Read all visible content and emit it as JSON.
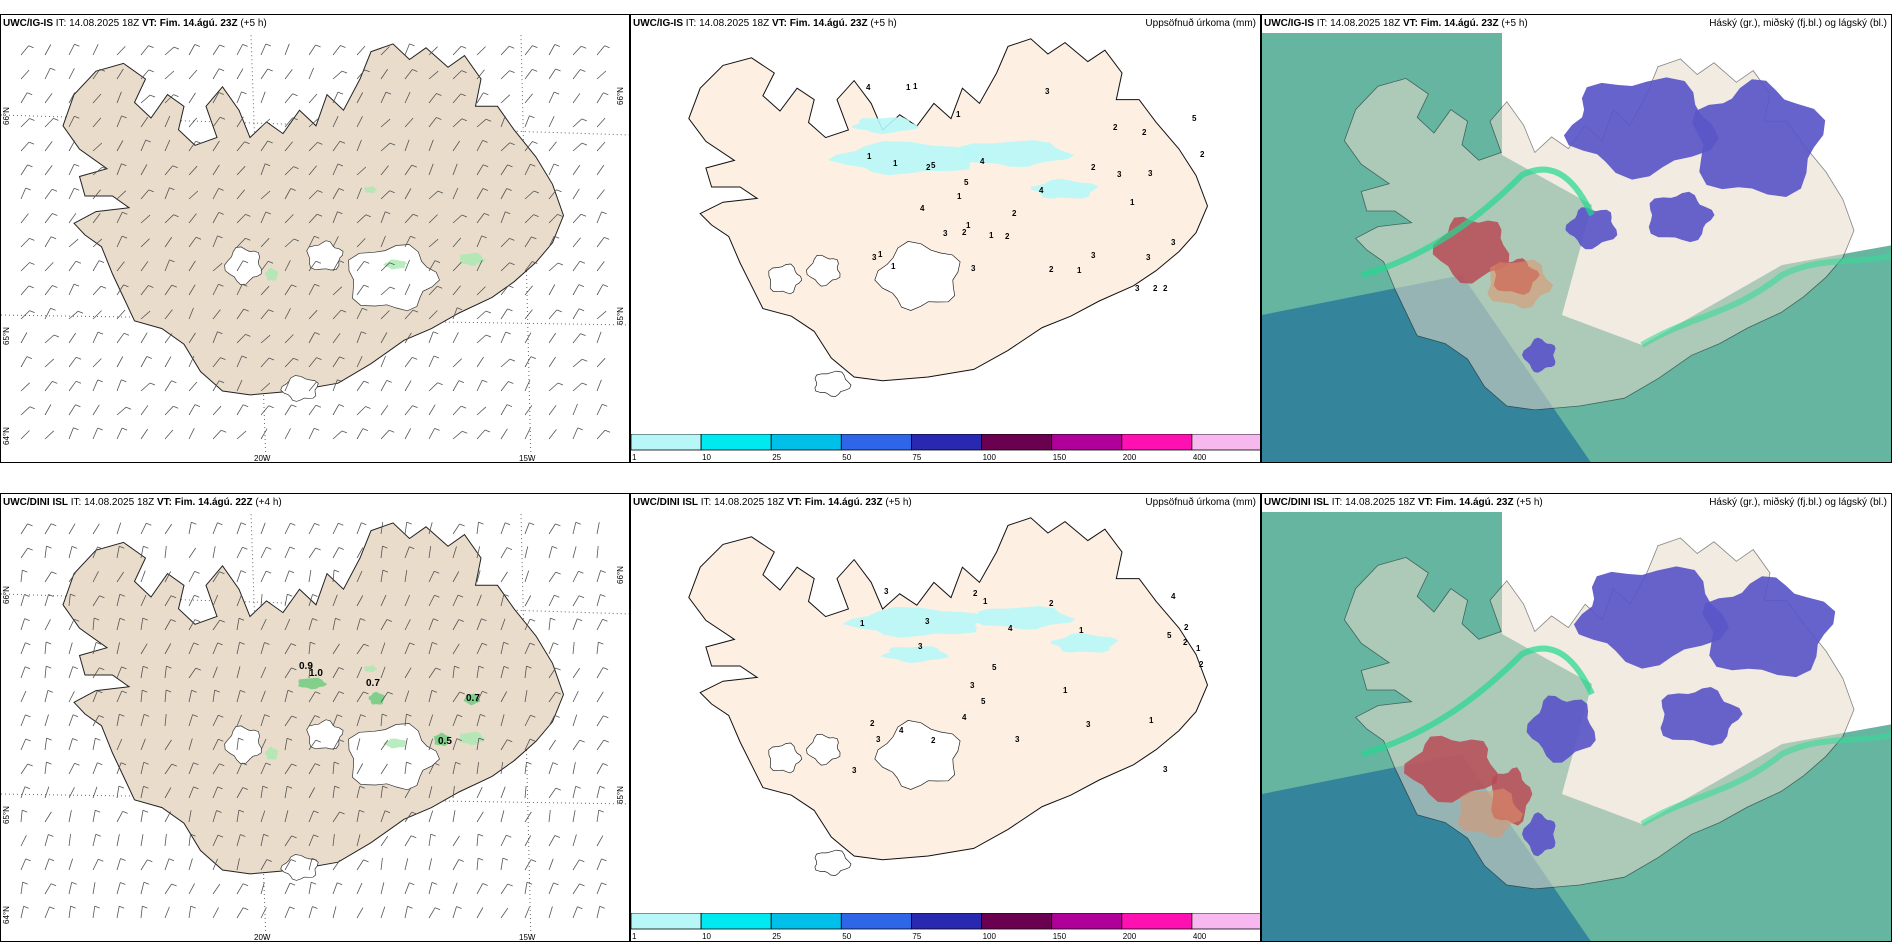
{
  "rows": [
    {
      "wind": {
        "model": "UWC/IG-IS",
        "it": "IT: 14.08.2025 18Z",
        "vt_label": "VT:",
        "vt_value": "Fim. 14.ágú. 23Z",
        "offset": "(+5 h)"
      },
      "precip": {
        "model": "UWC/IG-IS",
        "it": "IT: 14.08.2025 18Z",
        "vt_label": "VT:",
        "vt_value": "Fim. 14.ágú. 23Z",
        "offset": "(+5 h)",
        "right": "Uppsöfnuð úrkoma (mm)"
      },
      "cloud": {
        "model": "UWC/IG-IS",
        "it": "IT: 14.08.2025 18Z",
        "vt_label": "VT:",
        "vt_value": "Fim. 14.ágú. 23Z",
        "offset": "(+5 h)",
        "right": "Háský (gr.), miðský (fj.bl.) og lágský (bl.)"
      },
      "precip_numbers": [
        "2",
        "2",
        "1",
        "1",
        "2",
        "1",
        "2",
        "1",
        "2",
        "3",
        "3",
        "3",
        "4",
        "3",
        "5",
        "3",
        "4",
        "2",
        "5",
        "4",
        "2",
        "5",
        "1",
        "3",
        "3",
        "2",
        "2",
        "1",
        "2",
        "3",
        "1",
        "1",
        "1",
        "3",
        "2",
        "1",
        "1",
        "1",
        "4",
        "3"
      ],
      "wind_values": []
    },
    {
      "wind": {
        "model": "UWC/DINI ISL",
        "it": "IT: 14.08.2025 18Z",
        "vt_label": "VT:",
        "vt_value": "Fim. 14.ágú. 22Z",
        "offset": "(+4 h)"
      },
      "precip": {
        "model": "UWC/DINI ISL",
        "it": "IT: 14.08.2025 18Z",
        "vt_label": "VT:",
        "vt_value": "Fim. 14.ágú. 23Z",
        "offset": "(+5 h)",
        "right": "Uppsöfnuð úrkoma (mm)"
      },
      "cloud": {
        "model": "UWC/DINI ISL",
        "it": "IT: 14.08.2025 18Z",
        "vt_label": "VT:",
        "vt_value": "Fim. 14.ágú. 23Z",
        "offset": "(+5 h)",
        "right": "Háský (gr.), miðský (fj.bl.) og lágský (bl.)"
      },
      "precip_numbers": [
        "2",
        "2",
        "3",
        "3",
        "4",
        "5",
        "4",
        "5",
        "3",
        "3",
        "4",
        "5",
        "3",
        "3",
        "3",
        "3",
        "2",
        "1",
        "1",
        "1",
        "3",
        "2",
        "2",
        "2",
        "4",
        "1",
        "1",
        "1",
        "2"
      ],
      "wind_values": [
        "0.9",
        "1.0",
        "0.7",
        "0.7",
        "0.5"
      ]
    }
  ],
  "axis": {
    "lat_66": "66°N",
    "lat_65": "65°N",
    "lat_64": "64°N",
    "lon_20": "20W",
    "lon_15": "15W"
  },
  "colorbar": {
    "ticks": [
      "1",
      "10",
      "25",
      "50",
      "75",
      "100",
      "150",
      "200",
      "400"
    ],
    "colors": [
      "#b8f7f7",
      "#00e8f0",
      "#00bfe8",
      "#2f66e8",
      "#2828b0",
      "#6a0050",
      "#b0009a",
      "#ff10b0",
      "#f7b8f0"
    ]
  }
}
